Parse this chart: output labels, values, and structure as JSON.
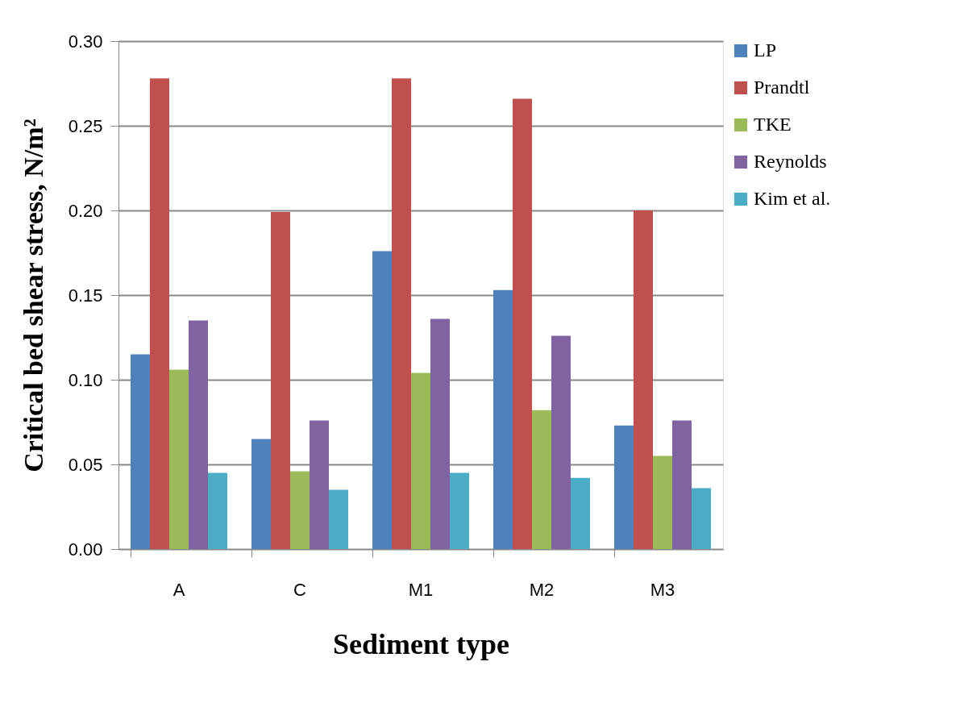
{
  "chart_data": {
    "type": "bar",
    "xlabel": "Sediment type",
    "ylabel": "Critical bed shear stress, N/m²",
    "categories": [
      "A",
      "C",
      "M1",
      "M2",
      "M3"
    ],
    "series": [
      {
        "name": "LP",
        "color": "#4f81bd",
        "values": [
          0.115,
          0.065,
          0.176,
          0.153,
          0.073
        ]
      },
      {
        "name": "Prandtl",
        "color": "#c0504d",
        "values": [
          0.278,
          0.199,
          0.278,
          0.266,
          0.2
        ]
      },
      {
        "name": "TKE",
        "color": "#9bbb59",
        "values": [
          0.106,
          0.046,
          0.104,
          0.082,
          0.055
        ]
      },
      {
        "name": "Reynolds",
        "color": "#8064a2",
        "values": [
          0.135,
          0.076,
          0.136,
          0.126,
          0.076
        ]
      },
      {
        "name": "Kim et al.",
        "color": "#4bacc6",
        "values": [
          0.045,
          0.035,
          0.045,
          0.042,
          0.036
        ]
      }
    ],
    "ylim": [
      0,
      0.3
    ],
    "yticks": [
      {
        "value": 0,
        "label": "0.00"
      },
      0.05,
      {
        "value": 0.1,
        "label": "0.10"
      },
      0.15,
      {
        "value": 0.2,
        "label": "0.20"
      },
      0.25,
      {
        "value": 0.3,
        "label": "0.30"
      }
    ],
    "grid": "y",
    "legend": "right"
  }
}
